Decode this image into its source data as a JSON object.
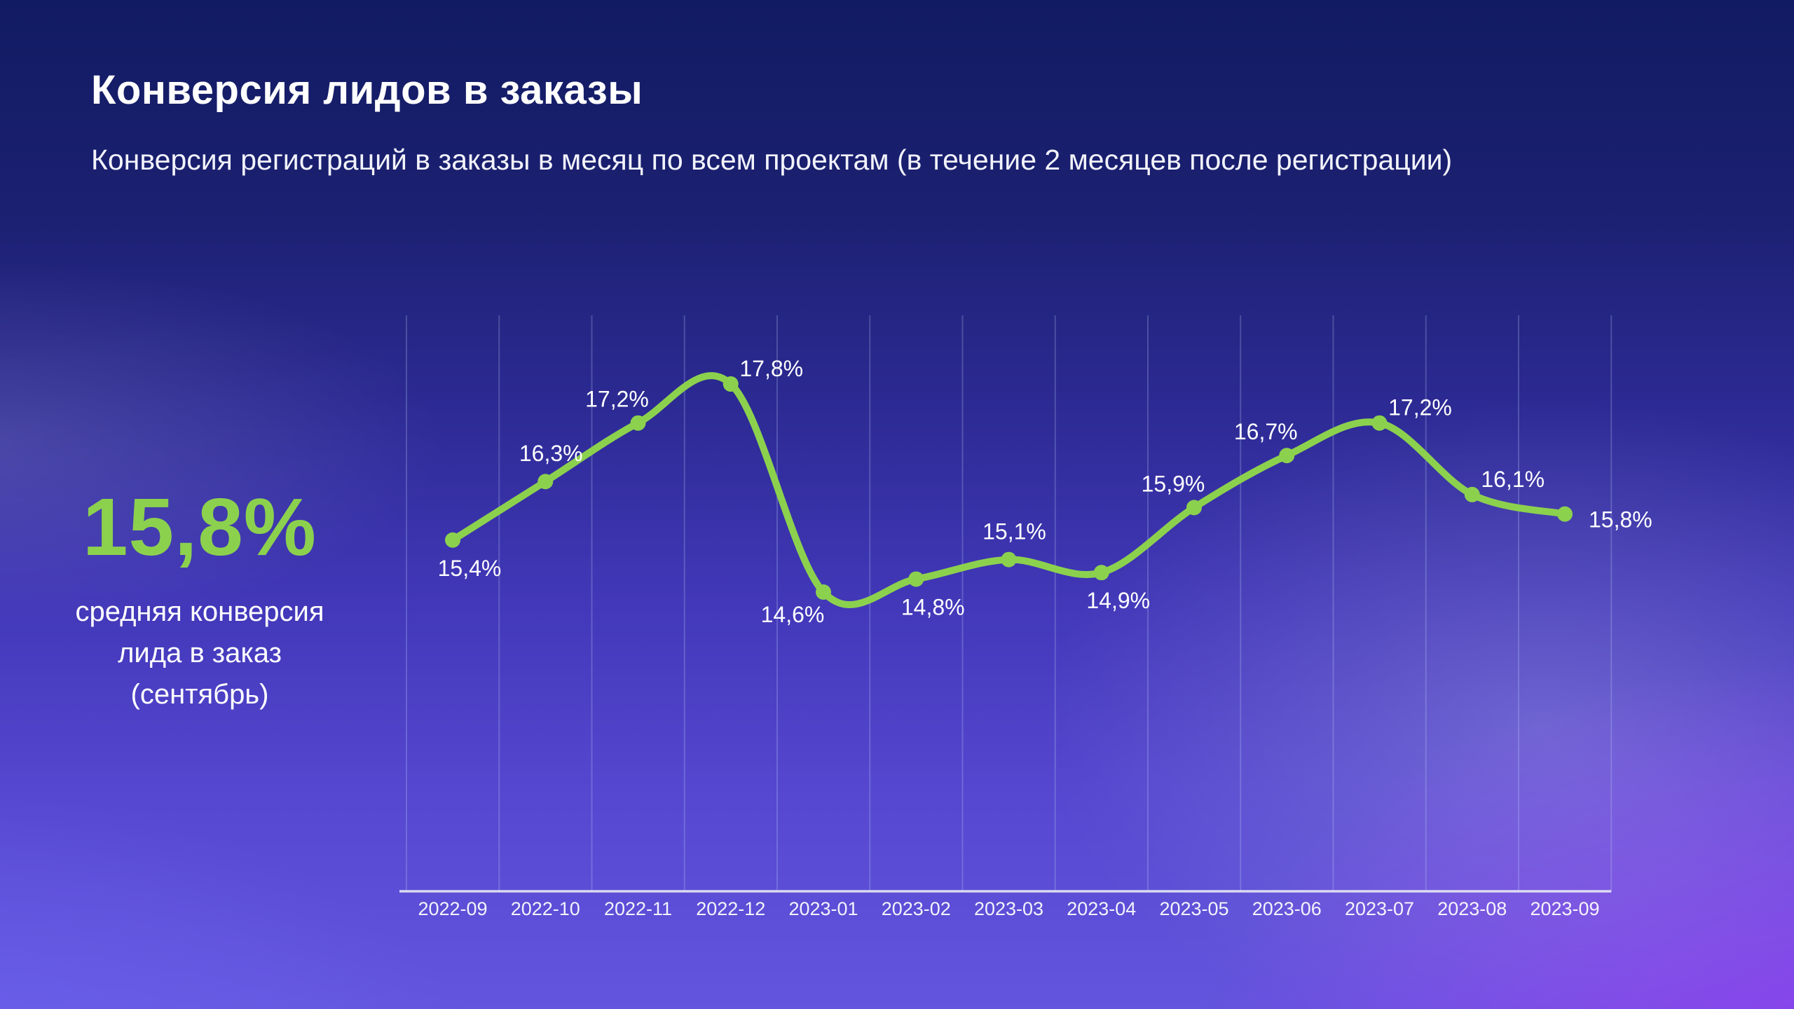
{
  "header": {
    "title": "Конверсия лидов в заказы",
    "subtitle": "Конверсия регистраций в заказы в месяц по всем проектам (в течение 2 месяцев после регистрации)"
  },
  "kpi": {
    "value": "15,8%",
    "caption_lines": [
      "средняя конверсия",
      "лида в заказ",
      "(сентябрь)"
    ]
  },
  "chart_data": {
    "type": "line",
    "title": "Конверсия лидов в заказы",
    "categories": [
      "2022-09",
      "2022-10",
      "2022-11",
      "2022-12",
      "2023-01",
      "2023-02",
      "2023-03",
      "2023-04",
      "2023-05",
      "2023-06",
      "2023-07",
      "2023-08",
      "2023-09"
    ],
    "series": [
      {
        "name": "Конверсия лидов в заказы, %",
        "values": [
          15.4,
          16.3,
          17.2,
          17.8,
          14.6,
          14.8,
          15.1,
          14.9,
          15.9,
          16.7,
          17.2,
          16.1,
          15.8
        ]
      }
    ],
    "point_labels": [
      "15,4%",
      "16,3%",
      "17,2%",
      "17,8%",
      "14,6%",
      "14,8%",
      "15,1%",
      "14,9%",
      "15,9%",
      "16,7%",
      "17,2%",
      "16,1%",
      "15,8%"
    ],
    "label_positions": [
      "below",
      "above",
      "above-left",
      "above-right",
      "below-left",
      "below",
      "above",
      "below",
      "above-left",
      "above-left",
      "above-right",
      "above-right",
      "right"
    ],
    "xlabel": "",
    "ylabel": "",
    "y_axis_shown": false,
    "grid": "vertical-only",
    "legend": "none",
    "line_style": "smooth",
    "colors": {
      "line": "#8CD14E",
      "marker": "#8CD14E",
      "label": "#FFFFFF",
      "axis": "#E8E9F5"
    }
  }
}
